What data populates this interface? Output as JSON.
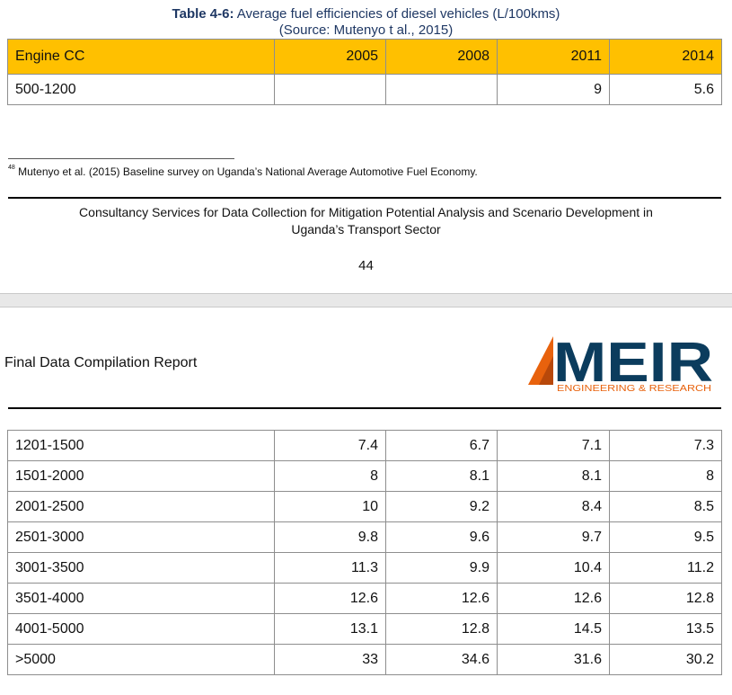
{
  "caption": {
    "label": "Table 4-6:",
    "text": "Average fuel efficiencies of diesel vehicles (L/100kms)",
    "source": "(Source: Mutenyo t al., 2015)"
  },
  "table_top": {
    "headers": [
      "Engine CC",
      "2005",
      "2008",
      "2011",
      "2014"
    ],
    "rows": [
      [
        "500-1200",
        "",
        "",
        "9",
        "5.6"
      ]
    ]
  },
  "footnote": {
    "number": "48",
    "text": "Mutenyo et al. (2015) Baseline survey on Uganda’s National Average Automotive Fuel Economy."
  },
  "footer": {
    "line1": "Consultancy Services for Data Collection for Mitigation Potential Analysis and Scenario Development in",
    "line2": "Uganda’s Transport Sector",
    "page": "44"
  },
  "header2": {
    "report_title": "Final Data Compilation Report",
    "logo_text": "MEIR",
    "logo_subtitle": "ENGINEERING & RESEARCH",
    "logo_color": "#e8620d",
    "logo_dark": "#0b3c5d"
  },
  "table_bottom": {
    "rows": [
      [
        "1201-1500",
        "7.4",
        "6.7",
        "7.1",
        "7.3"
      ],
      [
        "1501-2000",
        "8",
        "8.1",
        "8.1",
        "8"
      ],
      [
        "2001-2500",
        "10",
        "9.2",
        "8.4",
        "8.5"
      ],
      [
        "2501-3000",
        "9.8",
        "9.6",
        "9.7",
        "9.5"
      ],
      [
        "3001-3500",
        "11.3",
        "9.9",
        "10.4",
        "11.2"
      ],
      [
        "3501-4000",
        "12.6",
        "12.6",
        "12.6",
        "12.8"
      ],
      [
        "4001-5000",
        "13.1",
        "12.8",
        "14.5",
        "13.5"
      ],
      [
        ">5000",
        "33",
        "34.6",
        "31.6",
        "30.2"
      ]
    ]
  }
}
